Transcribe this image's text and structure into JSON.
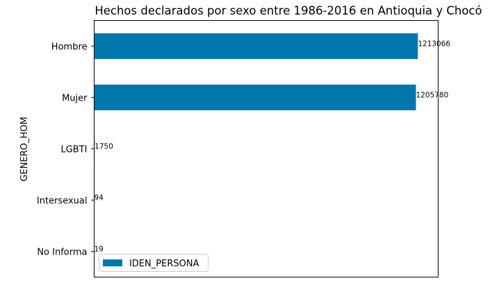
{
  "chart_data": {
    "type": "bar",
    "orientation": "horizontal",
    "title": "Hechos declarados por sexo entre 1986-2016 en Antioquia y Chocó",
    "xlabel": "",
    "ylabel": "GENERO_HOM",
    "categories": [
      "Hombre",
      "Mujer",
      "LGBTI",
      "Intersexual",
      "No Informa"
    ],
    "series": [
      {
        "name": "IDEN_PERSONA",
        "color": "#0077aa",
        "values": [
          1213066,
          1205780,
          1750,
          94,
          19
        ]
      }
    ],
    "data_labels": [
      "1213066",
      "1205780",
      "1750",
      "94",
      "19"
    ],
    "xlim": [
      0,
      1289025
    ],
    "x_ticks_visible": false,
    "grid": false,
    "legend_position": "lower-left"
  }
}
